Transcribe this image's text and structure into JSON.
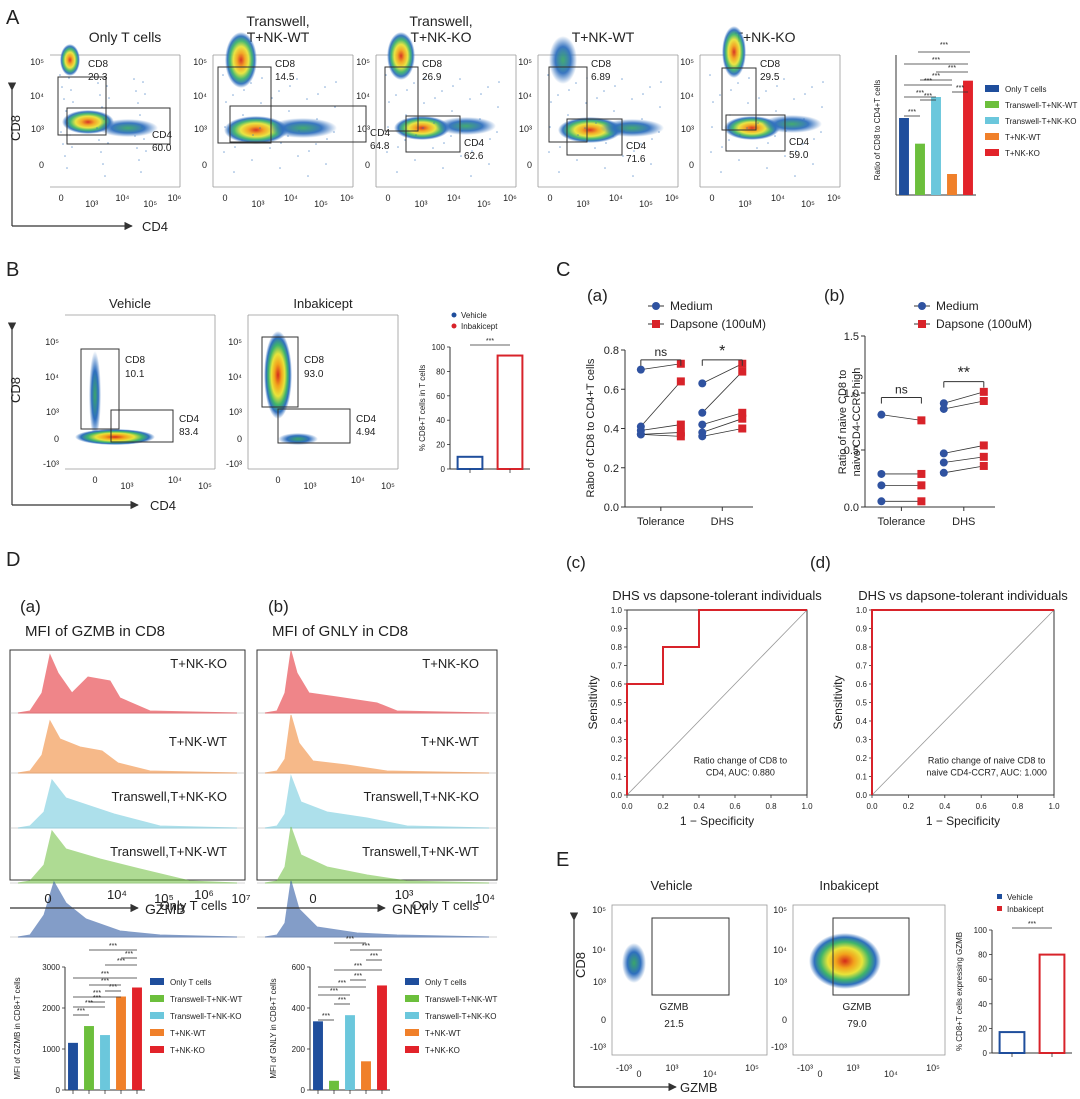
{
  "panels": {
    "A": "A",
    "B": "B",
    "C": "C",
    "D": "D",
    "E": "E",
    "Ca": "(a)",
    "Cb": "(b)",
    "Cc": "(c)",
    "Cd": "(d)",
    "Da": "(a)",
    "Db": "(b)"
  },
  "colors": {
    "only_t": "#1f4e9c",
    "tw_wt": "#6cbf3c",
    "tw_ko": "#6bc7dc",
    "t_nk_wt": "#f0802a",
    "t_nk_ko": "#e2232a",
    "medium": "#2f52a0",
    "dapsone": "#d8232a",
    "vehicle": "#1f4e9c",
    "inbakicept": "#d8232a"
  },
  "panelA": {
    "titles": [
      "Only T cells",
      "Transwell,\nT+NK-WT",
      "Transwell,\nT+NK-KO",
      "T+NK-WT",
      "T+NK-KO"
    ],
    "cd8_values": [
      "20.3",
      "14.5",
      "26.9",
      "6.89",
      "29.5"
    ],
    "cd4_values": [
      "60.0",
      "64.8",
      "62.6",
      "71.6",
      "59.0"
    ],
    "gate_cd8": "CD8",
    "gate_cd4": "CD4",
    "xaxis": "CD4",
    "yaxis": "CD8",
    "yticks": [
      "10^5",
      "10^4",
      "10^3",
      "0"
    ],
    "xticks": [
      "0",
      "10^3",
      "10^4",
      "10^5",
      "10^6"
    ]
  },
  "panelB": {
    "titles": [
      "Vehicle",
      "Inbakicept"
    ],
    "cd8_values": [
      "10.1",
      "93.0"
    ],
    "cd4_values": [
      "83.4",
      "4.94"
    ],
    "xaxis": "CD4",
    "yaxis": "CD8",
    "yticks": [
      "10^5",
      "10^4",
      "10^3",
      "0",
      "-10^3"
    ],
    "xticks": [
      "0",
      "10^3",
      "10^4",
      "10^5"
    ]
  },
  "panelE": {
    "titles": [
      "Vehicle",
      "Inbakicept"
    ],
    "gate": "GZMB",
    "values": [
      "21.5",
      "79.0"
    ],
    "xaxis": "GZMB",
    "yaxis": "CD8",
    "yticks": [
      "10^5",
      "10^4",
      "10^3",
      "0",
      "-10^3"
    ],
    "xticks": [
      "-10^3",
      "0",
      "10^3",
      "10^4",
      "10^5"
    ]
  },
  "panelD_hist": {
    "a_title": "MFI of GZMB in CD8",
    "b_title": "MFI of GNLY in CD8",
    "labels": [
      "T+NK-KO",
      "T+NK-WT",
      "Transwell,T+NK-KO",
      "Transwell,T+NK-WT",
      "Only T cells"
    ],
    "a_xaxis": "GZMB",
    "b_xaxis": "GNLY",
    "a_xticks": [
      "0",
      "10^4",
      "10^5",
      "10^6",
      "10^7"
    ],
    "b_xticks": [
      "0",
      "10^3",
      "10^4"
    ]
  },
  "chart_data": [
    {
      "id": "A_bar",
      "type": "bar",
      "categories": [
        "Only T cells",
        "Transwell-T+NK-WT",
        "Transwell-T+NK-KO",
        "T+NK-WT",
        "T+NK-KO"
      ],
      "values": [
        0.33,
        0.22,
        0.42,
        0.09,
        0.49
      ],
      "ylabel": "Ratio of CD8 to CD4+T cells",
      "yticks": [],
      "sig": [
        "***",
        "***",
        "***",
        "***",
        "***",
        "***",
        "***",
        "***"
      ],
      "legend": "right"
    },
    {
      "id": "B_bar",
      "type": "bar",
      "categories": [
        "Vehicle",
        "Inbakicept"
      ],
      "values": [
        10,
        93
      ],
      "ylabel": "% CD8+T cells in T cells",
      "ylim": [
        0,
        100
      ],
      "yticks": [
        0,
        20,
        40,
        60,
        80,
        100
      ],
      "sig": [
        "***"
      ],
      "legend": "top"
    },
    {
      "id": "Ca",
      "type": "scatter",
      "categories": [
        "Tolerance",
        "DHS"
      ],
      "series": [
        {
          "name": "Medium",
          "values": [
            [
              0.7,
              0.41,
              0.39,
              0.37
            ],
            [
              0.63,
              0.48,
              0.42,
              0.38,
              0.36
            ]
          ]
        },
        {
          "name": "Dapsone (100uM)",
          "values": [
            [
              0.73,
              0.64,
              0.42,
              0.38,
              0.36
            ],
            [
              0.73,
              0.69,
              0.48,
              0.45,
              0.4
            ]
          ]
        }
      ],
      "ylabel": "Rabo of CD8 to CD4+T cells",
      "ylim": [
        0.0,
        0.8
      ],
      "yticks": [
        "0.0",
        "0.2",
        "0.4",
        "0.6",
        "0.8"
      ],
      "sig": [
        "ns",
        "*"
      ]
    },
    {
      "id": "Cb",
      "type": "scatter",
      "categories": [
        "Tolerance",
        "DHS"
      ],
      "series": [
        {
          "name": "Medium",
          "values": [
            [
              0.81,
              0.29,
              0.19,
              0.05
            ],
            [
              0.91,
              0.86,
              0.47,
              0.39,
              0.3
            ]
          ]
        },
        {
          "name": "Dapsone (100uM)",
          "values": [
            [
              0.76,
              0.29,
              0.19,
              0.05
            ],
            [
              1.01,
              0.93,
              0.54,
              0.44,
              0.36
            ]
          ]
        }
      ],
      "ylabel": "Ratio of naive CD8 to\nnaive CD4-CCR7 high",
      "ylim": [
        0.0,
        1.5
      ],
      "yticks": [
        "0.0",
        "0.5",
        "1.0",
        "1.5"
      ],
      "sig": [
        "ns",
        "**"
      ]
    },
    {
      "id": "Cc",
      "type": "line",
      "title": "DHS vs dapsone-tolerant individuals",
      "x": [
        0.0,
        0.0,
        0.0,
        0.2,
        0.2,
        0.4,
        0.4,
        1.0
      ],
      "y": [
        0.0,
        0.6,
        0.6,
        0.6,
        0.8,
        0.8,
        1.0,
        1.0
      ],
      "xlabel": "1 − Specificity",
      "ylabel": "Sensitivity",
      "annotation": "Ratio change of CD8 to\nCD4, AUC: 0.880",
      "xticks": [
        "0.0",
        "0.2",
        "0.4",
        "0.6",
        "0.8",
        "1.0"
      ],
      "yticks": [
        "0.0",
        "0.1",
        "0.2",
        "0.3",
        "0.4",
        "0.5",
        "0.6",
        "0.7",
        "0.8",
        "0.9",
        "1.0"
      ]
    },
    {
      "id": "Cd",
      "type": "line",
      "title": "DHS vs dapsone-tolerant individuals",
      "x": [
        0.0,
        0.0,
        1.0
      ],
      "y": [
        0.0,
        1.0,
        1.0
      ],
      "xlabel": "1 − Specificity",
      "ylabel": "Sensitivity",
      "annotation": "Ratio change of naive CD8 to\nnaive CD4-CCR7, AUC: 1.000",
      "xticks": [
        "0.0",
        "0.2",
        "0.4",
        "0.6",
        "0.8",
        "1.0"
      ],
      "yticks": [
        "0.0",
        "0.1",
        "0.2",
        "0.3",
        "0.4",
        "0.5",
        "0.6",
        "0.7",
        "0.8",
        "0.9",
        "1.0"
      ]
    },
    {
      "id": "Da_bar",
      "type": "bar",
      "categories": [
        "Only T cells",
        "Transwell-T+NK-WT",
        "Transwell-T+NK-KO",
        "T+NK-WT",
        "T+NK-KO"
      ],
      "values": [
        1150,
        1560,
        1340,
        2280,
        2500
      ],
      "ylabel": "MFI of GZMB in CD8+T cells",
      "ylim": [
        0,
        3000
      ],
      "yticks": [
        0,
        1000,
        2000,
        3000
      ],
      "sig": [
        "***",
        "***",
        "***",
        "***",
        "***",
        "***",
        "***",
        "***",
        "***",
        "***"
      ]
    },
    {
      "id": "Db_bar",
      "type": "bar",
      "categories": [
        "Only T cells",
        "Transwell-T+NK-WT",
        "Transwell-T+NK-KO",
        "T+NK-WT",
        "T+NK-KO"
      ],
      "values": [
        335,
        45,
        365,
        140,
        510
      ],
      "ylabel": "MFI of GNLY in CD8+T cells",
      "ylim": [
        0,
        600
      ],
      "yticks": [
        0,
        200,
        400,
        600
      ],
      "sig": [
        "***",
        "***",
        "***",
        "***",
        "***",
        "***",
        "***",
        "***",
        "***"
      ]
    },
    {
      "id": "E_bar",
      "type": "bar",
      "categories": [
        "Vehicle",
        "Inbakicept"
      ],
      "values": [
        17,
        80
      ],
      "ylabel": "% CD8+T cells expressing GZMB",
      "ylim": [
        0,
        100
      ],
      "yticks": [
        0,
        20,
        40,
        60,
        80,
        100
      ],
      "sig": [
        "***"
      ]
    }
  ]
}
